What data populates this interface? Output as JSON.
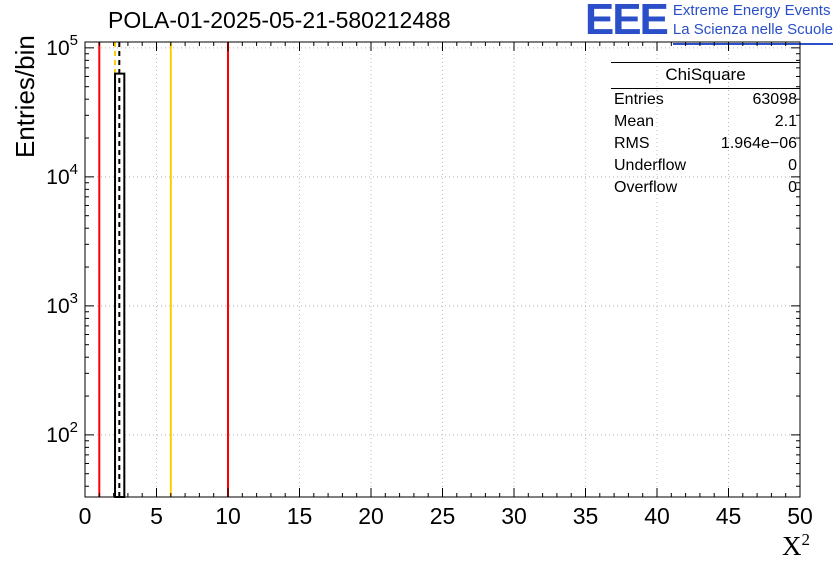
{
  "branding": {
    "logo_text": "EEE",
    "tagline1": "Extreme Energy Events",
    "tagline2": "La Scienza nelle Scuole",
    "logo_color": "#2a4fc9"
  },
  "chart_data": {
    "type": "bar",
    "title": "POLA-01-2025-05-21-580212488",
    "xlabel": "X^2",
    "xlabel_base": "X",
    "xlabel_sup": "2",
    "ylabel": "Entries/bin",
    "xlim": [
      0,
      50
    ],
    "x_major_ticks": [
      0,
      5,
      10,
      15,
      20,
      25,
      30,
      35,
      40,
      45,
      50
    ],
    "x_minor_step": 1,
    "ylog": true,
    "ylim": [
      33,
      111000
    ],
    "y_major_ticks": [
      100,
      1000,
      10000,
      100000
    ],
    "grid": true,
    "grid_color": "#b8b8b8",
    "frame_color": "#000000",
    "histogram": {
      "name": "ChiSquare",
      "line_color": "#000000",
      "fill_color": "#ffffff",
      "bins": [
        {
          "x_low": 2.1,
          "x_high": 2.75,
          "count": 63098
        }
      ]
    },
    "vlines": [
      {
        "x": 1.0,
        "color": "#ff0000",
        "style": "solid",
        "layer": "front"
      },
      {
        "x": 2.1,
        "color": "#ffcc00",
        "style": "dashed",
        "layer": "back"
      },
      {
        "x": 2.4,
        "color": "#000000",
        "style": "dashed",
        "layer": "front"
      },
      {
        "x": 6.0,
        "color": "#ffcc00",
        "style": "solid",
        "layer": "front"
      },
      {
        "x": 10.0,
        "color": "#ff0000",
        "style": "solid",
        "layer": "front"
      }
    ],
    "stats": {
      "title": "ChiSquare",
      "rows": [
        {
          "label": "Entries",
          "value": "63098"
        },
        {
          "label": "Mean",
          "value": "2.1"
        },
        {
          "label": "RMS",
          "value": "1.964e−06"
        },
        {
          "label": "Underflow",
          "value": "0"
        },
        {
          "label": "Overflow",
          "value": "0"
        }
      ]
    }
  }
}
